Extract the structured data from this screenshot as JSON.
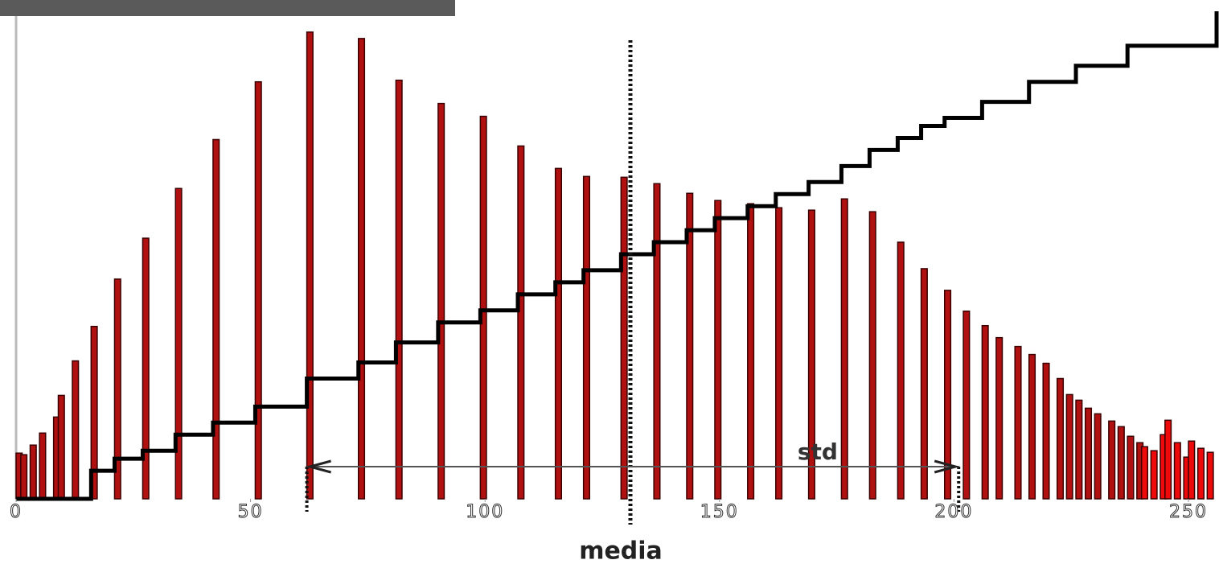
{
  "chart_data": {
    "type": "bar",
    "xlabel": "media",
    "x": [
      0,
      1,
      3,
      5,
      8,
      9,
      12,
      16,
      21,
      27,
      34,
      42,
      51,
      62,
      73,
      81,
      90,
      99,
      107,
      115,
      121,
      129,
      136,
      143,
      149,
      156,
      162,
      169,
      176,
      182,
      188,
      193,
      198,
      202,
      206,
      209,
      213,
      216,
      219,
      222,
      224,
      226,
      228,
      230,
      233,
      235,
      237,
      239,
      240,
      242,
      244,
      245,
      247,
      249,
      250,
      252,
      254
    ],
    "values": [
      57,
      55,
      67,
      82,
      102,
      129,
      172,
      215,
      274,
      325,
      387,
      448,
      520,
      582,
      574,
      522,
      493,
      477,
      440,
      412,
      402,
      401,
      393,
      381,
      372,
      368,
      363,
      360,
      374,
      358,
      320,
      287,
      260,
      234,
      216,
      201,
      190,
      180,
      169,
      150,
      130,
      123,
      113,
      106,
      97,
      90,
      78,
      70,
      65,
      60,
      80,
      98,
      70,
      52,
      72,
      63,
      58
    ],
    "color": "#b01010",
    "highlight_color": "#ee0a0a",
    "highlight_from": 240,
    "cumulative": {
      "color": "#000000",
      "x": [
        0,
        16,
        21,
        27,
        34,
        42,
        51,
        62,
        73,
        81,
        90,
        99,
        107,
        115,
        121,
        129,
        136,
        143,
        149,
        156,
        162,
        169,
        176,
        182,
        188,
        193,
        198,
        206,
        216,
        226,
        237,
        256
      ],
      "values": [
        0,
        35,
        50,
        60,
        80,
        95,
        115,
        150,
        170,
        195,
        220,
        235,
        255,
        270,
        285,
        305,
        320,
        335,
        350,
        365,
        380,
        395,
        415,
        435,
        450,
        465,
        475,
        495,
        520,
        540,
        565,
        608
      ]
    },
    "mean": 131,
    "std_range": [
      62,
      201
    ],
    "annotation": "std",
    "xlim": [
      0,
      256
    ],
    "ylim": [
      0,
      610
    ],
    "xticks": [
      0,
      50,
      100,
      150,
      200,
      250
    ]
  }
}
